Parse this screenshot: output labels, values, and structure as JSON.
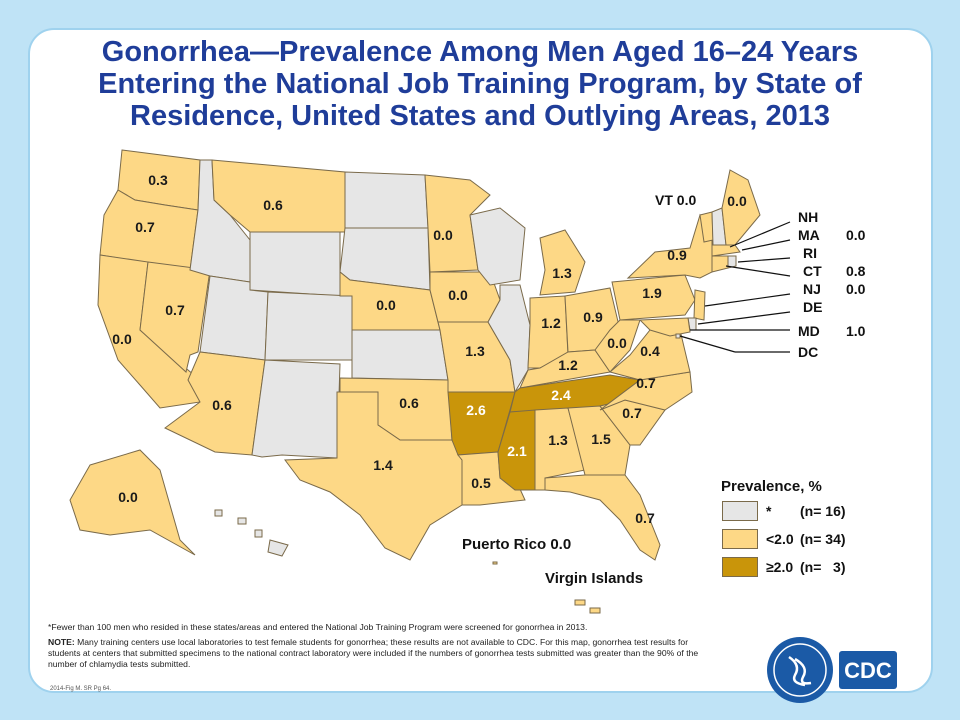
{
  "title": {
    "line1": "Gonorrhea—Prevalence Among Men Aged 16–24 Years",
    "line2": "Entering the National Job Training Program, by State of",
    "line3": "Residence, United States and Outlying Areas, 2013"
  },
  "states": [
    {
      "id": "WA",
      "label": "0.3",
      "category": "lt2"
    },
    {
      "id": "OR",
      "label": "0.7",
      "category": "lt2"
    },
    {
      "id": "CA",
      "label": "0.0",
      "category": "lt2"
    },
    {
      "id": "NV",
      "label": "0.7",
      "category": "lt2"
    },
    {
      "id": "ID",
      "label": "",
      "category": "insufficient"
    },
    {
      "id": "MT",
      "label": "0.6",
      "category": "lt2"
    },
    {
      "id": "WY",
      "label": "",
      "category": "insufficient"
    },
    {
      "id": "UT",
      "label": "",
      "category": "insufficient"
    },
    {
      "id": "AZ",
      "label": "0.6",
      "category": "lt2"
    },
    {
      "id": "CO",
      "label": "",
      "category": "insufficient"
    },
    {
      "id": "NM",
      "label": "",
      "category": "insufficient"
    },
    {
      "id": "ND",
      "label": "",
      "category": "insufficient"
    },
    {
      "id": "SD",
      "label": "",
      "category": "insufficient"
    },
    {
      "id": "NE",
      "label": "0.0",
      "category": "lt2"
    },
    {
      "id": "KS",
      "label": "",
      "category": "insufficient"
    },
    {
      "id": "OK",
      "label": "0.6",
      "category": "lt2"
    },
    {
      "id": "TX",
      "label": "1.4",
      "category": "lt2"
    },
    {
      "id": "MN",
      "label": "0.0",
      "category": "lt2"
    },
    {
      "id": "IA",
      "label": "0.0",
      "category": "lt2"
    },
    {
      "id": "MO",
      "label": "1.3",
      "category": "lt2"
    },
    {
      "id": "AR",
      "label": "2.6",
      "category": "ge2"
    },
    {
      "id": "LA",
      "label": "0.5",
      "category": "lt2"
    },
    {
      "id": "WI",
      "label": "",
      "category": "insufficient"
    },
    {
      "id": "IL",
      "label": "",
      "category": "insufficient"
    },
    {
      "id": "MI",
      "label": "1.3",
      "category": "lt2"
    },
    {
      "id": "IN",
      "label": "1.2",
      "category": "lt2"
    },
    {
      "id": "OH",
      "label": "0.9",
      "category": "lt2"
    },
    {
      "id": "KY",
      "label": "1.2",
      "category": "lt2"
    },
    {
      "id": "TN",
      "label": "2.4",
      "category": "ge2"
    },
    {
      "id": "MS",
      "label": "2.1",
      "category": "ge2"
    },
    {
      "id": "AL",
      "label": "1.3",
      "category": "lt2"
    },
    {
      "id": "GA",
      "label": "1.5",
      "category": "lt2"
    },
    {
      "id": "FL",
      "label": "0.7",
      "category": "lt2"
    },
    {
      "id": "SC",
      "label": "0.7",
      "category": "lt2"
    },
    {
      "id": "NC",
      "label": "0.7",
      "category": "lt2"
    },
    {
      "id": "VA",
      "label": "0.4",
      "category": "lt2"
    },
    {
      "id": "WV",
      "label": "0.0",
      "category": "lt2"
    },
    {
      "id": "PA",
      "label": "1.9",
      "category": "lt2"
    },
    {
      "id": "NY",
      "label": "0.9",
      "category": "lt2"
    },
    {
      "id": "ME",
      "label": "0.0",
      "category": "lt2"
    },
    {
      "id": "AK",
      "label": "0.0",
      "category": "lt2"
    },
    {
      "id": "HI",
      "label": "",
      "category": "insufficient"
    }
  ],
  "northeast_labels": [
    {
      "abbr": "VT",
      "value": "0.0"
    },
    {
      "abbr": "NH",
      "value": ""
    },
    {
      "abbr": "MA",
      "value": "0.0"
    },
    {
      "abbr": "RI",
      "value": ""
    },
    {
      "abbr": "CT",
      "value": "0.8"
    },
    {
      "abbr": "NJ",
      "value": "0.0"
    },
    {
      "abbr": "DE",
      "value": ""
    },
    {
      "abbr": "MD",
      "value": "1.0"
    },
    {
      "abbr": "DC",
      "value": ""
    }
  ],
  "territories": {
    "puerto_rico": "Puerto Rico 0.0",
    "virgin_islands": "Virgin Islands"
  },
  "legend": {
    "title": "Prevalence, %",
    "items": [
      {
        "symbol": "*",
        "n": "(n= 16)",
        "color": "#e6e6e6"
      },
      {
        "symbol": "<2.0",
        "n": "(n= 34)",
        "color": "#fdd886"
      },
      {
        "symbol": "≥2.0",
        "n": "(n=   3)",
        "color": "#c9950a"
      }
    ]
  },
  "footnotes": {
    "asterisk": "*Fewer than 100 men who resided in these states/areas and entered the National Job Training Program were screened for gonorrhea in 2013.",
    "note_label": "NOTE:",
    "note_text": " Many training centers use local laboratories to test female students for gonorrhea; these results are not available to CDC. For this map, gonorrhea test results for students at centers that submitted specimens to the national contract laboratory were included if the numbers of gonorrhea tests submitted was greater than the 90% of the number of chlamydia tests submitted."
  },
  "source": "2014-Fig M. SR Pg 64.",
  "logo_text": "CDC",
  "colors": {
    "insufficient": "#e6e6e6",
    "lt2": "#fdd886",
    "ge2": "#c9950a",
    "title": "#1f3d99",
    "background": "#bfe3f6"
  }
}
